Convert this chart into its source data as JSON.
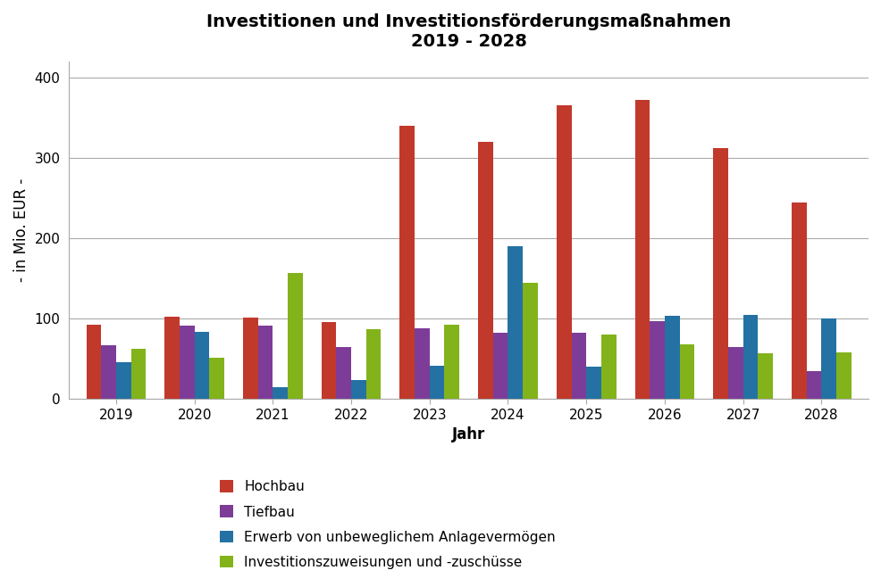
{
  "title_line1": "Investitionen und Investitionsförderungsmaßnahmen",
  "title_line2": "2019 - 2028",
  "xlabel": "Jahr",
  "ylabel": "- in Mio. EUR -",
  "years": [
    2019,
    2020,
    2021,
    2022,
    2023,
    2024,
    2025,
    2026,
    2027,
    2028
  ],
  "series": {
    "Hochbau": [
      93,
      102,
      101,
      96,
      340,
      320,
      365,
      372,
      312,
      244
    ],
    "Tiefbau": [
      67,
      91,
      91,
      65,
      88,
      82,
      82,
      97,
      65,
      35
    ],
    "Erwerb von unbeweglichem Anlagevermögen": [
      46,
      84,
      15,
      24,
      42,
      190,
      40,
      104,
      105,
      100
    ],
    "Investitionszuweisungen und -zuschüsse": [
      63,
      52,
      157,
      87,
      93,
      145,
      80,
      68,
      57,
      58
    ]
  },
  "colors": {
    "Hochbau": "#C1392B",
    "Tiefbau": "#7D3C98",
    "Erwerb von unbeweglichem Anlagevermögen": "#2471A3",
    "Investitionszuweisungen und -zuschüsse": "#82B31A"
  },
  "ylim": [
    0,
    420
  ],
  "yticks": [
    0,
    100,
    200,
    300,
    400
  ],
  "background_color": "#FFFFFF",
  "grid_color": "#AAAAAA",
  "title_fontsize": 14,
  "axis_label_fontsize": 12,
  "tick_fontsize": 11,
  "legend_fontsize": 11,
  "bar_width": 0.19
}
